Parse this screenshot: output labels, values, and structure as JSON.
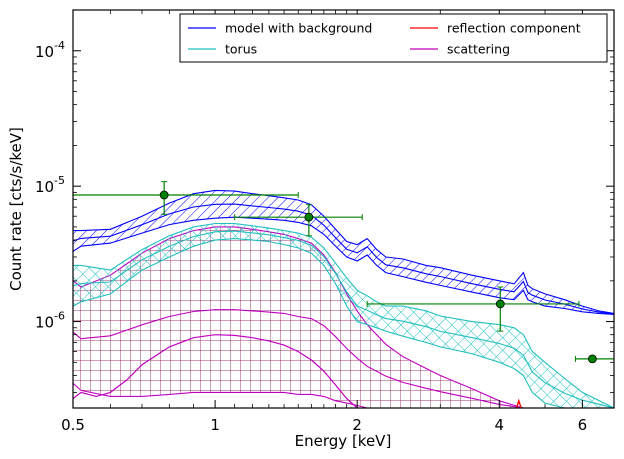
{
  "chart_data": {
    "type": "line",
    "xlabel": "Energy [keV]",
    "ylabel": "Count rate [cts/s/keV]",
    "x_scale": "log",
    "y_scale": "log",
    "xlim": [
      0.5,
      7.0
    ],
    "ylim": [
      2.3e-07,
      0.0002
    ],
    "x_ticks": [
      {
        "value": 0.5,
        "label": "0.5"
      },
      {
        "value": 1,
        "label": "1"
      },
      {
        "value": 2,
        "label": "2"
      },
      {
        "value": 4,
        "label": "4"
      },
      {
        "value": 6,
        "label": "6"
      }
    ],
    "y_ticks": [
      {
        "value": 1e-06,
        "base": "10",
        "exp": "-6"
      },
      {
        "value": 1e-05,
        "base": "10",
        "exp": "-5"
      },
      {
        "value": 0.0001,
        "base": "10",
        "exp": "-4"
      }
    ],
    "grid": false,
    "legend_position": "top-right",
    "legend": [
      {
        "name": "model with background",
        "color": "#0000ff"
      },
      {
        "name": "reflection component",
        "color": "#ff0000"
      },
      {
        "name": "torus",
        "color": "#1fbfbf"
      },
      {
        "name": "scattering",
        "color": "#bf00bf"
      }
    ],
    "series": [
      {
        "name": "model with background",
        "color": "#0000ff",
        "style": "hatched-band",
        "x": [
          0.5,
          0.52,
          0.6,
          0.7,
          0.8,
          0.9,
          1.0,
          1.1,
          1.2,
          1.3,
          1.4,
          1.5,
          1.6,
          1.7,
          1.8,
          1.9,
          2.0,
          2.1,
          2.2,
          2.3,
          2.5,
          2.8,
          3.0,
          3.5,
          4.0,
          4.3,
          4.5,
          4.6,
          4.7,
          5.0,
          5.5,
          6.0,
          6.5,
          7.0
        ],
        "upper": [
          4.7e-06,
          4.7e-06,
          4.8e-06,
          6e-06,
          7.5e-06,
          8.8e-06,
          9.3e-06,
          9.2e-06,
          8.8e-06,
          8.5e-06,
          8.2e-06,
          7.9e-06,
          7.3e-06,
          6e-06,
          4.8e-06,
          3.9e-06,
          3.7e-06,
          4.1e-06,
          3.4e-06,
          3e-06,
          2.9e-06,
          2.6e-06,
          2.5e-06,
          2.2e-06,
          2e-06,
          1.9e-06,
          2.3e-06,
          1.85e-06,
          1.75e-06,
          1.6e-06,
          1.45e-06,
          1.3e-06,
          1.2e-06,
          1.15e-06
        ],
        "lower": [
          3.3e-06,
          3.6e-06,
          3.8e-06,
          4.5e-06,
          5.2e-06,
          5.6e-06,
          5.8e-06,
          5.9e-06,
          5.8e-06,
          5.7e-06,
          5.6e-06,
          5.4e-06,
          5.1e-06,
          4.4e-06,
          3.6e-06,
          3e-06,
          2.8e-06,
          3.1e-06,
          2.6e-06,
          2.3e-06,
          2.15e-06,
          1.95e-06,
          1.85e-06,
          1.65e-06,
          1.5e-06,
          1.45e-06,
          1.7e-06,
          1.45e-06,
          1.4e-06,
          1.3e-06,
          1.25e-06,
          1.18e-06,
          1.15e-06,
          1.13e-06
        ]
      },
      {
        "name": "torus",
        "color": "#1fbfbf",
        "style": "crosshatched-band",
        "x": [
          0.5,
          0.52,
          0.6,
          0.7,
          0.8,
          0.9,
          1.0,
          1.1,
          1.2,
          1.3,
          1.4,
          1.5,
          1.6,
          1.7,
          1.8,
          1.9,
          2.0,
          2.1,
          2.2,
          2.3,
          2.5,
          2.8,
          3.0,
          3.5,
          4.0,
          4.3,
          4.5,
          4.7,
          5.0,
          5.5,
          6.0,
          7.0
        ],
        "upper": [
          2.6e-06,
          2.6e-06,
          2.4e-06,
          3.4e-06,
          4.3e-06,
          5e-06,
          5.3e-06,
          5.3e-06,
          5.1e-06,
          4.9e-06,
          4.7e-06,
          4.5e-06,
          4.2e-06,
          3.5e-06,
          2.7e-06,
          2.1e-06,
          1.7e-06,
          1.55e-06,
          1.4e-06,
          1.3e-06,
          1.3e-06,
          1.2e-06,
          1.1e-06,
          1e-06,
          9.5e-07,
          9e-07,
          8e-07,
          6e-07,
          5e-07,
          3.8e-07,
          3e-07,
          2.3e-07
        ],
        "lower": [
          1.3e-06,
          1.4e-06,
          1.6e-06,
          2.4e-06,
          3e-06,
          3.6e-06,
          4e-06,
          4.1e-06,
          4e-06,
          3.9e-06,
          3.7e-06,
          3.5e-06,
          3.2e-06,
          2.6e-06,
          1.9e-06,
          1.3e-06,
          1e-06,
          9.5e-07,
          9e-07,
          8.5e-07,
          7.8e-07,
          7e-07,
          6.5e-07,
          5.8e-07,
          5e-07,
          4.5e-07,
          4e-07,
          3e-07,
          2.5e-07,
          2.3e-07,
          2.3e-07,
          2.3e-07
        ]
      },
      {
        "name": "scattering",
        "color": "#bf00bf",
        "style": "grid-hatched-band",
        "x": [
          0.5,
          0.52,
          0.6,
          0.7,
          0.8,
          0.9,
          1.0,
          1.1,
          1.2,
          1.3,
          1.4,
          1.5,
          1.6,
          1.7,
          1.8,
          1.9,
          2.0,
          2.1,
          2.2,
          2.3,
          2.5,
          2.8,
          3.0,
          3.5,
          4.0,
          4.5
        ],
        "upper": [
          2e-06,
          1.8e-06,
          2.2e-06,
          3.2e-06,
          4.1e-06,
          4.7e-06,
          5e-06,
          5e-06,
          4.8e-06,
          4.6e-06,
          4.4e-06,
          4.1e-06,
          3.8e-06,
          3.1e-06,
          2.3e-06,
          1.6e-06,
          1.2e-06,
          9.5e-07,
          8e-07,
          6.8e-07,
          5.5e-07,
          4.5e-07,
          4e-07,
          3.2e-07,
          2.6e-07,
          2.3e-07
        ],
        "lower": [
          3.5e-07,
          3.1e-07,
          2.8e-07,
          2.8e-07,
          2.9e-07,
          3e-07,
          3e-07,
          3e-07,
          3e-07,
          3e-07,
          3e-07,
          2.9e-07,
          2.9e-07,
          2.8e-07,
          2.6e-07,
          2.5e-07,
          2.4e-07,
          2.3e-07,
          2.3e-07,
          2.3e-07,
          2.3e-07,
          2.3e-07,
          2.3e-07,
          2.3e-07,
          2.3e-07,
          2.3e-07
        ],
        "line_x": [
          0.5,
          0.52,
          0.56,
          0.6,
          0.65,
          0.7,
          0.8,
          0.9,
          1.0,
          1.1,
          1.2,
          1.3,
          1.4,
          1.5,
          1.6,
          1.7,
          1.8,
          1.9,
          2.0
        ],
        "line_y": [
          2.7e-07,
          3e-07,
          2.8e-07,
          3e-07,
          3.7e-07,
          4.8e-07,
          6.5e-07,
          7.6e-07,
          8e-07,
          7.9e-07,
          7.6e-07,
          7.2e-07,
          6.7e-07,
          6e-07,
          5.2e-07,
          4.3e-07,
          3.4e-07,
          2.7e-07,
          2.3e-07
        ]
      },
      {
        "name": "reflection component",
        "color": "#ff0000",
        "style": "line",
        "x": [
          4.35,
          4.4,
          4.45
        ],
        "y": [
          2.3e-07,
          2.6e-07,
          2.3e-07
        ]
      }
    ],
    "data_points": {
      "name": "data",
      "color": "#008000",
      "points": [
        {
          "x": 0.78,
          "y": 8.6e-06,
          "xerr": [
            0.5,
            1.5
          ],
          "yerr": [
            6.2e-06,
            1.08e-05
          ]
        },
        {
          "x": 1.58,
          "y": 5.9e-06,
          "xerr": [
            1.1,
            2.05
          ],
          "yerr": [
            4.3e-06,
            7.3e-06
          ]
        },
        {
          "x": 4.02,
          "y": 1.35e-06,
          "xerr": [
            2.1,
            5.9
          ],
          "yerr": [
            8.5e-07,
            1.8e-06
          ]
        },
        {
          "x": 6.3,
          "y": 5.3e-07,
          "xerr": [
            5.8,
            7.0
          ],
          "yerr": [
            5.3e-07,
            5.3e-07
          ]
        }
      ]
    }
  }
}
